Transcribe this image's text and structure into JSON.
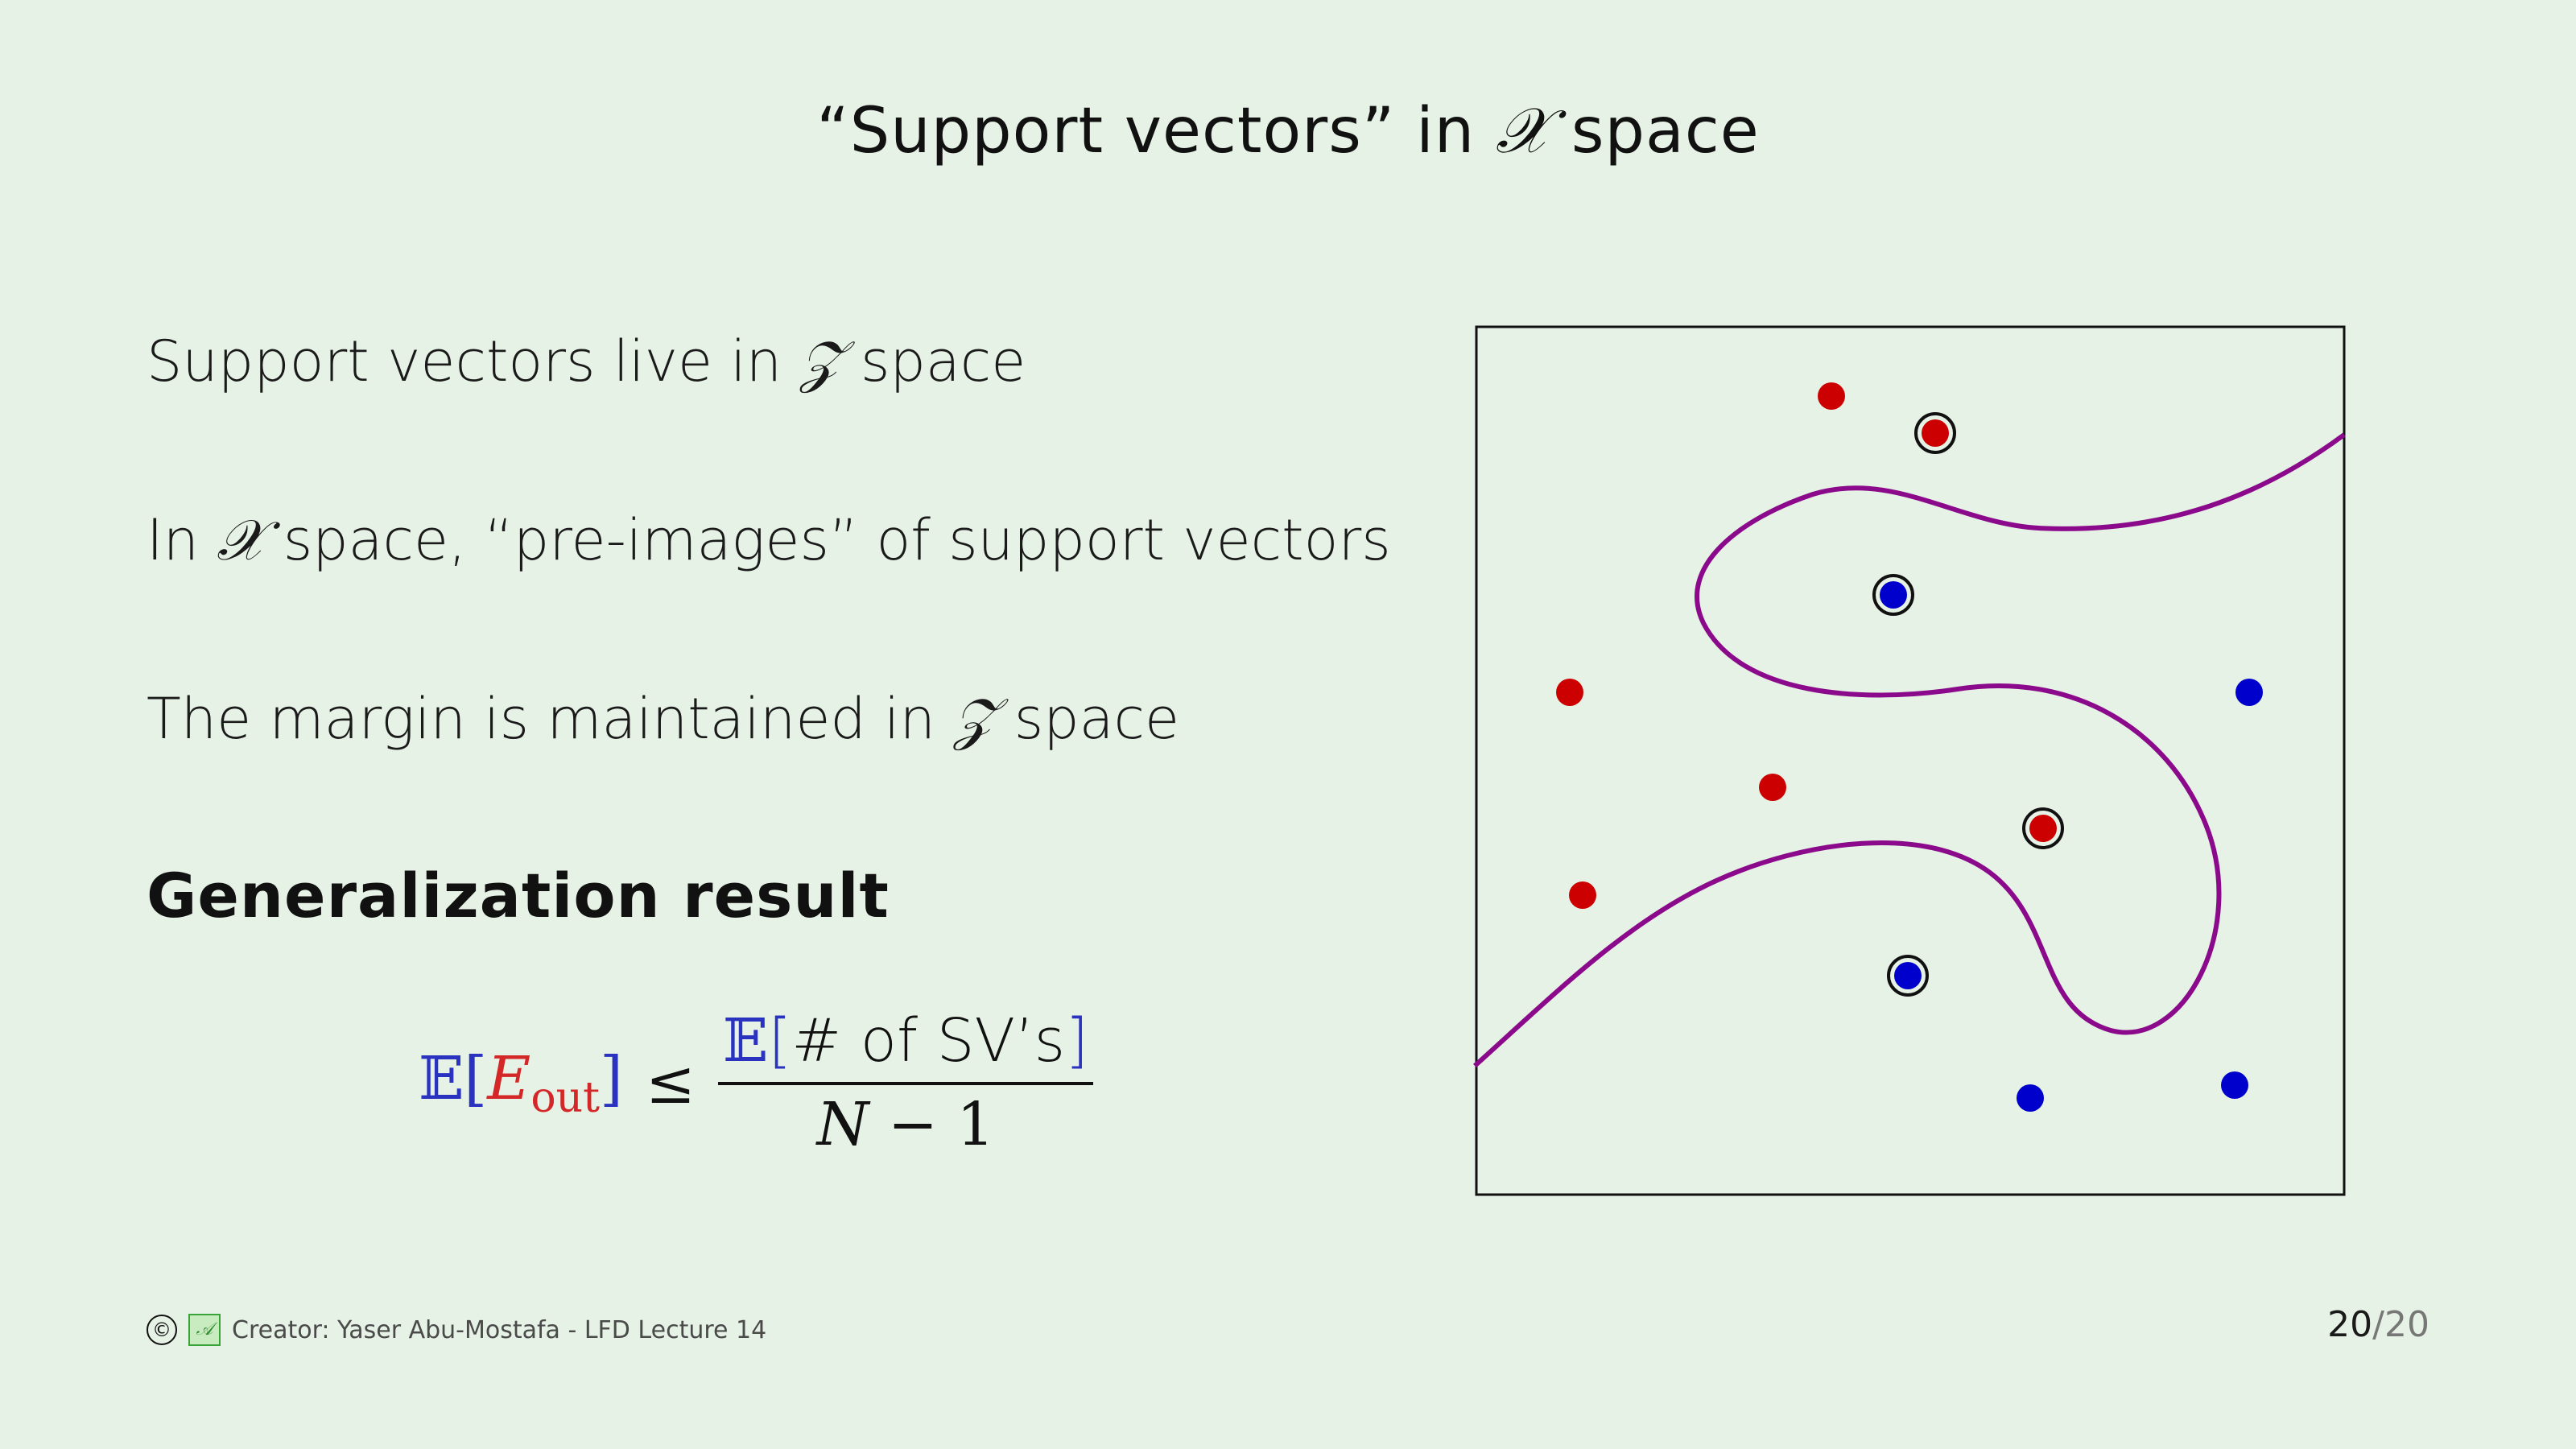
{
  "slide": {
    "title_prefix": "“Support vectors” in",
    "title_symbol": "𝒳",
    "title_suffix": "space"
  },
  "bullets": [
    {
      "prefix": "Support vectors live in",
      "symbol": "𝒵",
      "suffix": "space"
    },
    {
      "prefix": "In",
      "symbol": "𝒳",
      "suffix": "space, “pre-images” of support vectors"
    },
    {
      "prefix": "The margin is maintained in",
      "symbol": "𝒵",
      "suffix": "space"
    }
  ],
  "heading": "Generalization result",
  "formula": {
    "expectation": "𝔼",
    "open_bracket": "[",
    "close_bracket": "]",
    "e_out": "E",
    "e_out_sub": "out",
    "leq": "≤",
    "numerator_text": "# of SV’s",
    "denominator_var": "N",
    "denominator_rest": "− 1"
  },
  "footer": {
    "copyright_icon": "©",
    "logo_icon": "AML",
    "creator_text": "Creator: Yaser Abu-Mostafa - LFD Lecture 14"
  },
  "page": {
    "current": "20",
    "separator": "/",
    "total": "20"
  },
  "colors": {
    "background": "#e6f2e5",
    "red_point": "#cc0000",
    "blue_point": "#0000cc",
    "boundary": "#8b0a8b"
  },
  "figure": {
    "points": [
      {
        "label": "red",
        "support_vector": false
      },
      {
        "label": "red",
        "support_vector": true
      },
      {
        "label": "blue",
        "support_vector": true
      },
      {
        "label": "red",
        "support_vector": false
      },
      {
        "label": "blue",
        "support_vector": false
      },
      {
        "label": "red",
        "support_vector": false
      },
      {
        "label": "red",
        "support_vector": true
      },
      {
        "label": "red",
        "support_vector": false
      },
      {
        "label": "blue",
        "support_vector": true
      },
      {
        "label": "blue",
        "support_vector": false
      },
      {
        "label": "blue",
        "support_vector": false
      }
    ]
  }
}
